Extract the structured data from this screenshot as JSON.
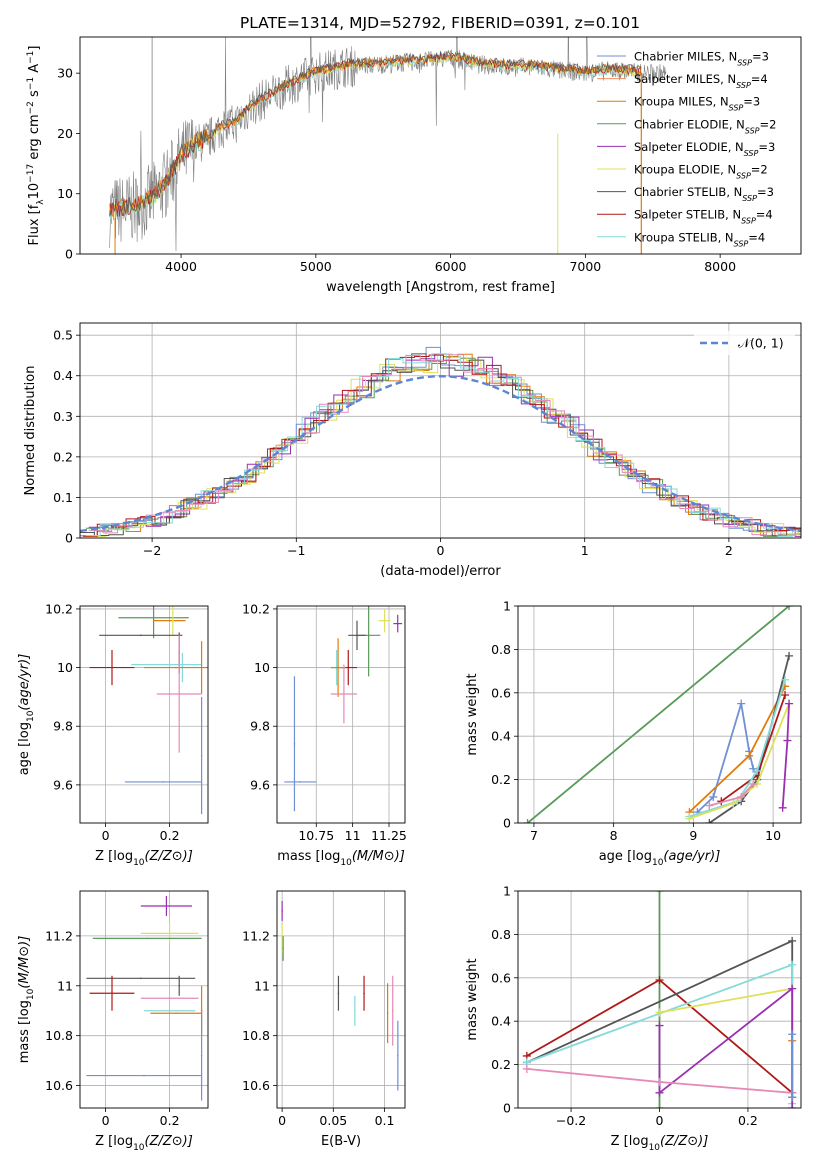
{
  "page": {
    "title": "PLATE=1314, MJD=52792, FIBERID=0391, z=0.101"
  },
  "colors": {
    "Chabrier MILES": "#6f8fd6",
    "Salpeter MILES": "#f28d5c",
    "Kroupa MILES": "#e07b0e",
    "Chabrier ELODIE": "#5a9a5a",
    "Salpeter ELODIE": "#9a2fb0",
    "Kroupa ELODIE": "#dfe05a",
    "Chabrier STELIB": "#555555",
    "Salpeter STELIB": "#b01818",
    "Kroupa STELIB": "#85dada",
    "pink": "#e58ab8",
    "normal": "#5b86d6",
    "observed": "#808080"
  },
  "chart_data": [
    {
      "id": "spectrum",
      "type": "line",
      "title": "",
      "xlabel": "wavelength [Angstrom, rest frame]",
      "ylabel_parts": [
        "Flux [f",
        "λ",
        "10",
        "−17",
        " erg cm",
        "−2",
        " s",
        "−1",
        " A",
        "−1",
        "]"
      ],
      "xlim": [
        3250,
        8600
      ],
      "ylim": [
        0,
        36
      ],
      "xticks": [
        4000,
        5000,
        6000,
        7000,
        8000
      ],
      "yticks": [
        0,
        10,
        20,
        30
      ],
      "envelope_x": [
        3470,
        3600,
        3700,
        3800,
        3900,
        4000,
        4100,
        4200,
        4300,
        4400,
        4500,
        4600,
        4800,
        5000,
        5200,
        5500,
        5800,
        6000,
        6200,
        6400,
        6600,
        6800,
        7000,
        7200,
        7400
      ],
      "envelope_y": [
        7,
        7.5,
        8,
        9.5,
        12,
        16,
        18,
        19,
        21,
        21.5,
        24,
        25.5,
        28,
        30,
        31,
        31.5,
        32,
        32.5,
        31.5,
        31,
        31,
        30.5,
        30,
        30.5,
        30
      ],
      "legend": [
        {
          "name": "Chabrier MILES, N",
          "sub": "SSP",
          "tail": "=3",
          "key": "Chabrier MILES"
        },
        {
          "name": "Salpeter MILES, N",
          "sub": "SSP",
          "tail": "=4",
          "key": "Salpeter MILES"
        },
        {
          "name": "Kroupa MILES, N",
          "sub": "SSP",
          "tail": "=3",
          "key": "Kroupa MILES"
        },
        {
          "name": "Chabrier ELODIE, N",
          "sub": "SSP",
          "tail": "=2",
          "key": "Chabrier ELODIE"
        },
        {
          "name": "Salpeter ELODIE, N",
          "sub": "SSP",
          "tail": "=3",
          "key": "Salpeter ELODIE"
        },
        {
          "name": "Kroupa ELODIE, N",
          "sub": "SSP",
          "tail": "=2",
          "key": "Kroupa ELODIE"
        },
        {
          "name": "Chabrier STELIB, N",
          "sub": "SSP",
          "tail": "=3",
          "key": "Chabrier STELIB"
        },
        {
          "name": "Salpeter STELIB, N",
          "sub": "SSP",
          "tail": "=4",
          "key": "Salpeter STELIB"
        },
        {
          "name": "Kroupa STELIB, N",
          "sub": "SSP",
          "tail": "=4",
          "key": "Kroupa STELIB"
        }
      ]
    },
    {
      "id": "residuals",
      "type": "area",
      "xlabel": "(data-model)/error",
      "ylabel": "Normed distribution",
      "xlim": [
        -2.5,
        2.5
      ],
      "ylim": [
        0,
        0.53
      ],
      "xticks": [
        -2,
        -1,
        0,
        1,
        2
      ],
      "yticks": [
        0.0,
        0.1,
        0.2,
        0.3,
        0.4,
        0.5
      ],
      "bin_width": 0.1,
      "normal_legend": "𝒩(0, 1)"
    },
    {
      "id": "age_vs_Z",
      "type": "scatter",
      "xlabel": "Z [log10(Z/Z⊙)]",
      "ylabel": "age  [log10(age/yr)]",
      "xlim": [
        -0.08,
        0.32
      ],
      "ylim": [
        9.47,
        10.21
      ],
      "xticks": [
        0.0,
        0.2
      ],
      "yticks": [
        9.6,
        9.8,
        10.0,
        10.2
      ],
      "points": [
        {
          "key": "Chabrier ELODIE",
          "x": 0.15,
          "xerr": 0.11,
          "y": 10.17,
          "yerr": 0.07
        },
        {
          "key": "Kroupa MILES",
          "x": 0.2,
          "xerr": 0.05,
          "y": 10.16,
          "yerr": 0.0
        },
        {
          "key": "Kroupa ELODIE",
          "x": 0.21,
          "xerr": 0.0,
          "y": 10.16,
          "yerr": 0.05
        },
        {
          "key": "Chabrier STELIB",
          "x": 0.11,
          "xerr": 0.13,
          "y": 10.11,
          "yerr": 0.0
        },
        {
          "key": "Chabrier STELIB",
          "x": 0.23,
          "xerr": 0.0,
          "y": 10.05,
          "yerr": 0.07
        },
        {
          "key": "Salpeter STELIB",
          "x": 0.02,
          "xerr": 0.07,
          "y": 10.0,
          "yerr": 0.06
        },
        {
          "key": "Kroupa STELIB",
          "x": 0.19,
          "xerr": 0.11,
          "y": 10.01,
          "yerr": 0.0
        },
        {
          "key": "Kroupa STELIB",
          "x": 0.24,
          "xerr": 0.0,
          "y": 10.0,
          "yerr": 0.05
        },
        {
          "key": "Kroupa MILES",
          "x": 0.22,
          "xerr": 0.1,
          "y": 10.0,
          "yerr": 0.0
        },
        {
          "key": "Kroupa MILES",
          "x": 0.3,
          "xerr": 0.0,
          "y": 10.0,
          "yerr": 0.09
        },
        {
          "key": "pink",
          "x": 0.23,
          "xerr": 0.07,
          "y": 9.91,
          "yerr": 0.2
        },
        {
          "key": "Chabrier MILES",
          "x": 0.18,
          "xerr": 0.12,
          "y": 9.61,
          "yerr": 0.0
        },
        {
          "key": "Chabrier MILES",
          "x": 0.3,
          "xerr": 0.0,
          "y": 9.7,
          "yerr": 0.2
        }
      ]
    },
    {
      "id": "age_vs_mass",
      "type": "scatter",
      "xlabel": "mass [log10(M/M⊙)]",
      "ylabel": "",
      "xlim": [
        10.48,
        11.36
      ],
      "ylim": [
        9.47,
        10.21
      ],
      "xticks": [
        10.75,
        11.0,
        11.25
      ],
      "yticks": [
        9.6,
        9.8,
        10.0,
        10.2
      ],
      "points": [
        {
          "key": "Chabrier ELODIE",
          "x": 11.11,
          "xerr": 0.08,
          "y": 10.11,
          "yerr": 0.14
        },
        {
          "key": "Salpeter ELODIE",
          "x": 11.31,
          "xerr": 0.03,
          "y": 10.15,
          "yerr": 0.03
        },
        {
          "key": "Kroupa ELODIE",
          "x": 11.22,
          "xerr": 0.04,
          "y": 10.16,
          "yerr": 0.04
        },
        {
          "key": "Chabrier STELIB",
          "x": 11.03,
          "xerr": 0.06,
          "y": 10.11,
          "yerr": 0.05
        },
        {
          "key": "Salpeter STELIB",
          "x": 10.97,
          "xerr": 0.06,
          "y": 10.0,
          "yerr": 0.06
        },
        {
          "key": "Kroupa STELIB",
          "x": 10.89,
          "xerr": 0.06,
          "y": 10.0,
          "yerr": 0.06
        },
        {
          "key": "Kroupa MILES",
          "x": 10.9,
          "xerr": 0.05,
          "y": 10.0,
          "yerr": 0.1
        },
        {
          "key": "pink",
          "x": 10.94,
          "xerr": 0.09,
          "y": 9.91,
          "yerr": 0.1
        },
        {
          "key": "Chabrier MILES",
          "x": 10.64,
          "xerr": 0.11,
          "y": 9.61,
          "yerr": 0.0
        },
        {
          "key": "Chabrier MILES",
          "x": 10.6,
          "xerr": 0.0,
          "y": 9.74,
          "yerr": 0.23
        }
      ]
    },
    {
      "id": "weight_vs_age",
      "type": "line",
      "xlabel": "age  [log10(age/yr)]",
      "ylabel": "mass weight",
      "xlim": [
        6.8,
        10.35
      ],
      "ylim": [
        0,
        1.0
      ],
      "xticks": [
        7,
        8,
        9,
        10
      ],
      "yticks": [
        0.0,
        0.2,
        0.4,
        0.6,
        0.8,
        1.0
      ],
      "series": [
        {
          "key": "Chabrier ELODIE",
          "x": [
            6.92,
            10.2
          ],
          "y": [
            0.0,
            1.0
          ]
        },
        {
          "key": "Chabrier MILES",
          "x": [
            9.05,
            9.25,
            9.6,
            9.7,
            9.75,
            9.8
          ],
          "y": [
            0.05,
            0.12,
            0.55,
            0.33,
            0.25,
            0.22
          ]
        },
        {
          "key": "Kroupa MILES",
          "x": [
            8.95,
            9.7,
            10.15
          ],
          "y": [
            0.05,
            0.31,
            0.63
          ]
        },
        {
          "key": "Chabrier STELIB",
          "x": [
            9.2,
            9.6,
            9.8,
            10.2
          ],
          "y": [
            0.0,
            0.1,
            0.2,
            0.77
          ]
        },
        {
          "key": "Salpeter STELIB",
          "x": [
            9.35,
            9.8,
            10.15
          ],
          "y": [
            0.1,
            0.22,
            0.59
          ]
        },
        {
          "key": "Kroupa STELIB",
          "x": [
            8.95,
            9.55,
            9.8,
            10.15
          ],
          "y": [
            0.03,
            0.1,
            0.24,
            0.66
          ]
        },
        {
          "key": "Kroupa ELODIE",
          "x": [
            8.95,
            9.5,
            9.8,
            10.2
          ],
          "y": [
            0.02,
            0.09,
            0.18,
            0.55
          ]
        },
        {
          "key": "Salpeter ELODIE",
          "x": [
            10.12,
            10.18,
            10.2
          ],
          "y": [
            0.07,
            0.38,
            0.55
          ]
        },
        {
          "key": "pink",
          "x": [
            9.2,
            9.6,
            9.75
          ],
          "y": [
            0.08,
            0.12,
            0.18
          ]
        }
      ]
    },
    {
      "id": "mass_vs_Z",
      "type": "scatter",
      "xlabel": "Z [log10(Z/Z⊙)]",
      "ylabel": "mass [log10(M/M⊙)]",
      "xlim": [
        -0.08,
        0.32
      ],
      "ylim": [
        10.51,
        11.38
      ],
      "xticks": [
        0.0,
        0.2
      ],
      "yticks": [
        10.6,
        10.8,
        11.0,
        11.2
      ],
      "points": [
        {
          "key": "Salpeter ELODIE",
          "x": 0.19,
          "xerr": 0.08,
          "y": 11.32,
          "yerr": 0.04
        },
        {
          "key": "Kroupa ELODIE",
          "x": 0.2,
          "xerr": 0.09,
          "y": 11.21,
          "yerr": 0.04
        },
        {
          "key": "Chabrier ELODIE",
          "x": 0.13,
          "xerr": 0.17,
          "y": 11.19,
          "yerr": 0.0
        },
        {
          "key": "Chabrier STELIB",
          "x": 0.11,
          "xerr": 0.17,
          "y": 11.03,
          "yerr": 0.0
        },
        {
          "key": "Chabrier STELIB",
          "x": 0.23,
          "xerr": 0.0,
          "y": 11.0,
          "yerr": 0.04
        },
        {
          "key": "Salpeter STELIB",
          "x": 0.02,
          "xerr": 0.07,
          "y": 10.97,
          "yerr": 0.07
        },
        {
          "key": "pink",
          "x": 0.2,
          "xerr": 0.09,
          "y": 10.95,
          "yerr": 0.0
        },
        {
          "key": "Kroupa STELIB",
          "x": 0.2,
          "xerr": 0.08,
          "y": 10.9,
          "yerr": 0.0
        },
        {
          "key": "Kroupa MILES",
          "x": 0.22,
          "xerr": 0.08,
          "y": 10.89,
          "yerr": 0.0
        },
        {
          "key": "Kroupa MILES",
          "x": 0.3,
          "xerr": 0.0,
          "y": 10.9,
          "yerr": 0.1
        },
        {
          "key": "Chabrier MILES",
          "x": 0.12,
          "xerr": 0.18,
          "y": 10.64,
          "yerr": 0.0
        },
        {
          "key": "Chabrier MILES",
          "x": 0.3,
          "xerr": 0.0,
          "y": 10.72,
          "yerr": 0.18
        }
      ]
    },
    {
      "id": "mass_vs_ebv",
      "type": "scatter",
      "xlabel": "E(B-V)",
      "ylabel": "",
      "xlim": [
        -0.005,
        0.12
      ],
      "ylim": [
        10.51,
        11.38
      ],
      "xticks": [
        0.0,
        0.05,
        0.1
      ],
      "yticks": [
        10.6,
        10.8,
        11.0,
        11.2
      ],
      "points": [
        {
          "key": "Salpeter ELODIE",
          "x": 0.0,
          "xerr": 0.0,
          "y": 11.3,
          "yerr": 0.04
        },
        {
          "key": "Kroupa ELODIE",
          "x": 0.0,
          "xerr": 0.0,
          "y": 11.19,
          "yerr": 0.06
        },
        {
          "key": "Chabrier ELODIE",
          "x": 0.001,
          "xerr": 0.0,
          "y": 11.15,
          "yerr": 0.05
        },
        {
          "key": "Chabrier STELIB",
          "x": 0.055,
          "xerr": 0.0,
          "y": 10.97,
          "yerr": 0.07
        },
        {
          "key": "Salpeter STELIB",
          "x": 0.08,
          "xerr": 0.0,
          "y": 10.97,
          "yerr": 0.07
        },
        {
          "key": "Kroupa STELIB",
          "x": 0.071,
          "xerr": 0.0,
          "y": 10.9,
          "yerr": 0.06
        },
        {
          "key": "Kroupa MILES",
          "x": 0.103,
          "xerr": 0.0,
          "y": 10.89,
          "yerr": 0.12
        },
        {
          "key": "pink",
          "x": 0.108,
          "xerr": 0.0,
          "y": 10.9,
          "yerr": 0.14
        },
        {
          "key": "Chabrier MILES",
          "x": 0.113,
          "xerr": 0.0,
          "y": 10.72,
          "yerr": 0.14
        }
      ]
    },
    {
      "id": "weight_vs_Z",
      "type": "line",
      "xlabel": "Z [log10(Z/Z⊙)]",
      "ylabel": "mass weight",
      "xlim": [
        -0.32,
        0.32
      ],
      "ylim": [
        0,
        1.0
      ],
      "xticks": [
        -0.2,
        0.0,
        0.2
      ],
      "yticks": [
        0.0,
        0.2,
        0.4,
        0.6,
        0.8,
        1.0
      ],
      "series": [
        {
          "key": "Chabrier ELODIE",
          "x": [
            0.0,
            0.0
          ],
          "y": [
            0.0,
            1.0
          ]
        },
        {
          "key": "Salpeter STELIB",
          "x": [
            -0.3,
            0.0,
            0.3
          ],
          "y": [
            0.24,
            0.59,
            0.07
          ]
        },
        {
          "key": "Chabrier STELIB",
          "x": [
            -0.3,
            0.3,
            0.3
          ],
          "y": [
            0.21,
            0.77,
            0.05
          ]
        },
        {
          "key": "Kroupa STELIB",
          "x": [
            -0.3,
            0.3,
            0.3
          ],
          "y": [
            0.21,
            0.66,
            0.02
          ]
        },
        {
          "key": "Kroupa ELODIE",
          "x": [
            0.0,
            0.3
          ],
          "y": [
            0.44,
            0.55
          ]
        },
        {
          "key": "Salpeter ELODIE",
          "x": [
            0.0,
            0.0,
            0.3,
            0.3
          ],
          "y": [
            0.38,
            0.07,
            0.55,
            0.0
          ]
        },
        {
          "key": "pink",
          "x": [
            -0.3,
            0.0,
            0.3
          ],
          "y": [
            0.18,
            0.12,
            0.07
          ]
        },
        {
          "key": "Kroupa MILES",
          "x": [
            0.3,
            0.3
          ],
          "y": [
            0.05,
            0.31
          ]
        },
        {
          "key": "Chabrier MILES",
          "x": [
            0.3,
            0.3
          ],
          "y": [
            0.05,
            0.34
          ]
        }
      ]
    }
  ]
}
